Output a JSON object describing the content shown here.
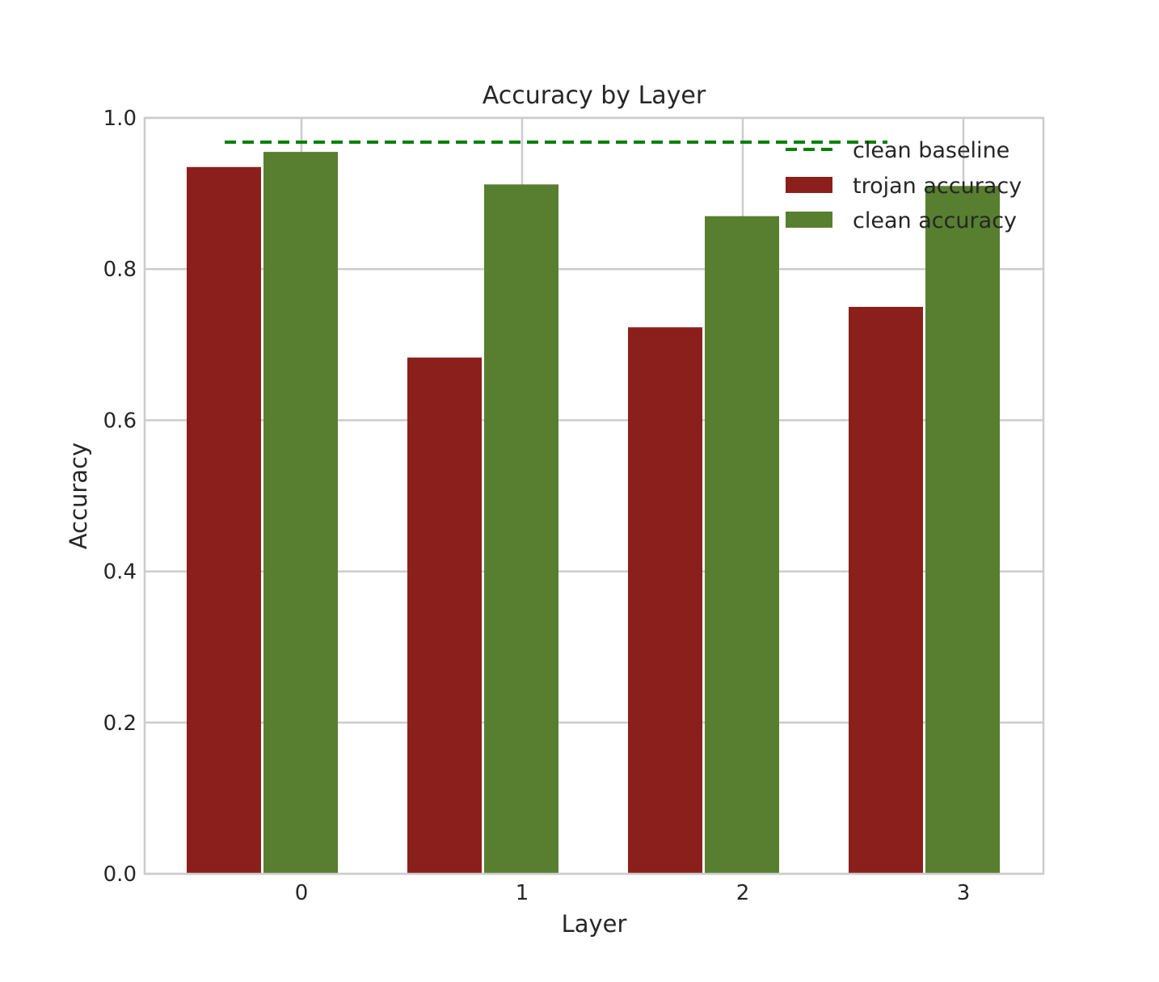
{
  "chart_data": {
    "type": "bar",
    "title": "Accuracy by Layer",
    "xlabel": "Layer",
    "ylabel": "Accuracy",
    "categories": [
      "0",
      "1",
      "2",
      "3"
    ],
    "ylim": [
      0,
      1.0
    ],
    "yticks": [
      "0.0",
      "0.2",
      "0.4",
      "0.6",
      "0.8",
      "1.0"
    ],
    "grid": true,
    "legend_position": "top-right",
    "series": [
      {
        "name": "trojan accuracy",
        "color": "#8b1f1c",
        "values": [
          0.935,
          0.683,
          0.723,
          0.75
        ]
      },
      {
        "name": "clean accuracy",
        "color": "#577f2f",
        "values": [
          0.955,
          0.912,
          0.87,
          0.91
        ]
      }
    ],
    "baseline": {
      "name": "clean baseline",
      "value": 0.968,
      "color": "#008000",
      "style": "dashed"
    }
  }
}
